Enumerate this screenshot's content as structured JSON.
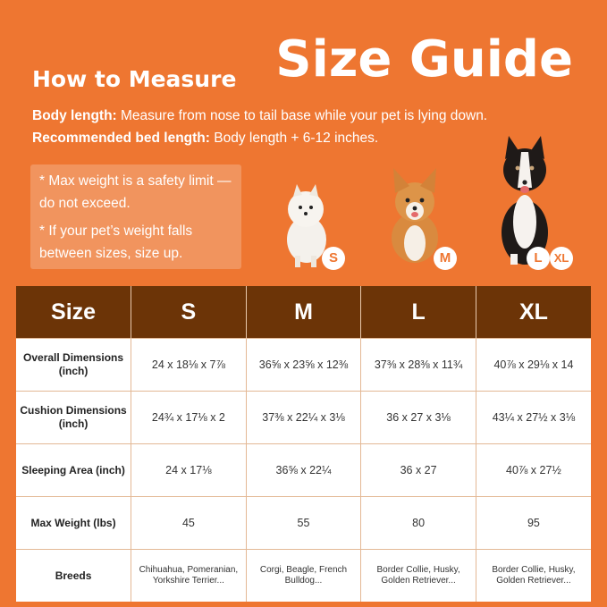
{
  "header": {
    "title": "Size Guide",
    "how_to": "How to Measure",
    "body_length_label": "Body length:",
    "body_length_text": " Measure from nose to tail base while your pet is lying down.",
    "bed_length_label": "Recommended bed length:",
    "bed_length_text": " Body length + 6-12 inches."
  },
  "notes": [
    "* Max weight is a safety limit — do not exceed.",
    "* If your pet’s weight falls between sizes, size up."
  ],
  "dogs": [
    {
      "name": "pomeranian",
      "badge": "S"
    },
    {
      "name": "corgi",
      "badge": "M"
    },
    {
      "name": "border-collie",
      "badges": [
        "L",
        "XL"
      ]
    }
  ],
  "colors": {
    "background": "#EE7631",
    "header_row": "#6C3407"
  },
  "table": {
    "headers": [
      "Size",
      "S",
      "M",
      "L",
      "XL"
    ],
    "rows": [
      {
        "label": "Overall Dimensions (inch)",
        "values": [
          "24 x 18⅛ x 7⅞",
          "36⅝ x 23⅝ x 12⅜",
          "37⅜ x 28⅜ x 11¾",
          "40⅞ x 29⅛ x 14"
        ]
      },
      {
        "label": "Cushion Dimensions (inch)",
        "values": [
          "24¾ x 17⅛ x 2",
          "37⅜ x 22¼ x 3⅛",
          "36 x 27 x 3⅛",
          "43¼ x 27½ x 3⅛"
        ]
      },
      {
        "label": "Sleeping Area (inch)",
        "values": [
          "24 x 17⅛",
          "36⅝ x 22¼",
          "36 x 27",
          "40⅞ x 27½"
        ]
      },
      {
        "label": "Max Weight (lbs)",
        "values": [
          "45",
          "55",
          "80",
          "95"
        ]
      },
      {
        "label": "Breeds",
        "values": [
          "Chihuahua, Pomeranian, Yorkshire Terrier...",
          "Corgi, Beagle, French Bulldog...",
          "Border Collie, Husky, Golden Retriever...",
          "Border Collie, Husky, Golden Retriever..."
        ]
      }
    ]
  }
}
